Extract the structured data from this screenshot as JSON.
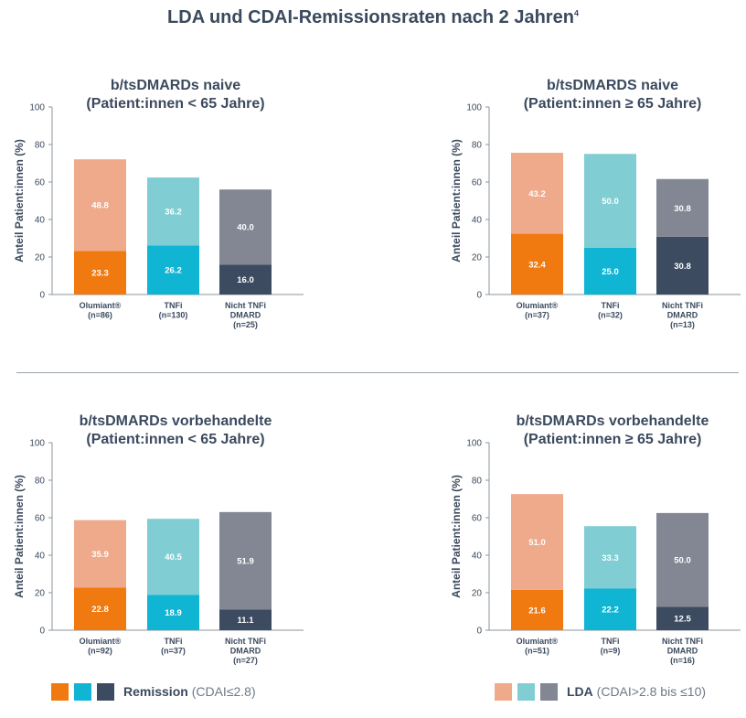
{
  "title": "LDA und CDAI-Remissionsraten nach 2 Jahren",
  "title_ref": "4",
  "colors": {
    "remission": [
      "#f07a10",
      "#10b5d4",
      "#3c4b5f"
    ],
    "lda": [
      "#eeaa8a",
      "#80cdd3",
      "#828793"
    ]
  },
  "legend": {
    "remission_label": "Remission",
    "remission_desc": "(CDAI≤2.8)",
    "lda_label": "LDA",
    "lda_desc": "(CDAI>2.8 bis ≤10)"
  },
  "chart_data": [
    {
      "type": "bar",
      "stacked": true,
      "title_line1": "b/tsDMARDs naive",
      "title_line2": "(Patient:innen < 65 Jahre)",
      "ylabel": "Anteil Patient:innen (%)",
      "ylim": [
        0,
        100
      ],
      "yticks": [
        0,
        20,
        40,
        60,
        80,
        100
      ],
      "categories": [
        [
          "Olumiant®",
          "(n=86)"
        ],
        [
          "TNFi",
          "(n=130)"
        ],
        [
          "Nicht TNFi",
          "DMARD",
          "(n=25)"
        ]
      ],
      "series": [
        {
          "name": "Remission",
          "values": [
            23.3,
            26.2,
            16.0
          ],
          "labels": [
            "23.3",
            "26.2",
            "16.0"
          ]
        },
        {
          "name": "LDA",
          "values": [
            48.8,
            36.2,
            40.0
          ],
          "labels": [
            "48.8",
            "36.2",
            "40.0"
          ]
        }
      ]
    },
    {
      "type": "bar",
      "stacked": true,
      "title_line1": "b/tsDMARDS naive",
      "title_line2": "(Patient:innen ≥ 65 Jahre)",
      "ylabel": "Anteil Patient:innen (%)",
      "ylim": [
        0,
        100
      ],
      "yticks": [
        0,
        20,
        40,
        60,
        80,
        100
      ],
      "categories": [
        [
          "Olumiant®",
          "(n=37)"
        ],
        [
          "TNFi",
          "(n=32)"
        ],
        [
          "Nicht TNFi",
          "DMARD",
          "(n=13)"
        ]
      ],
      "series": [
        {
          "name": "Remission",
          "values": [
            32.4,
            25.0,
            30.8
          ],
          "labels": [
            "32.4",
            "25.0",
            "30.8"
          ]
        },
        {
          "name": "LDA",
          "values": [
            43.2,
            50.0,
            30.8
          ],
          "labels": [
            "43.2",
            "50.0",
            "30.8"
          ]
        }
      ]
    },
    {
      "type": "bar",
      "stacked": true,
      "title_line1": "b/tsDMARDs vorbehandelte",
      "title_line2": "(Patient:innen < 65 Jahre)",
      "ylabel": "Anteil Patient:innen (%)",
      "ylim": [
        0,
        100
      ],
      "yticks": [
        0,
        20,
        40,
        60,
        80,
        100
      ],
      "categories": [
        [
          "Olumiant®",
          "(n=92)"
        ],
        [
          "TNFi",
          "(n=37)"
        ],
        [
          "Nicht TNFi",
          "DMARD",
          "(n=27)"
        ]
      ],
      "series": [
        {
          "name": "Remission",
          "values": [
            22.8,
            18.9,
            11.1
          ],
          "labels": [
            "22.8",
            "18.9",
            "11.1"
          ]
        },
        {
          "name": "LDA",
          "values": [
            35.9,
            40.5,
            51.9
          ],
          "labels": [
            "35.9",
            "40.5",
            "51.9"
          ]
        }
      ]
    },
    {
      "type": "bar",
      "stacked": true,
      "title_line1": "b/tsDMARDs vorbehandelte",
      "title_line2": "(Patient:innen ≥ 65 Jahre)",
      "ylabel": "Anteil Patient:innen (%)",
      "ylim": [
        0,
        100
      ],
      "yticks": [
        0,
        20,
        40,
        60,
        80,
        100
      ],
      "categories": [
        [
          "Olumiant®",
          "(n=51)"
        ],
        [
          "TNFi",
          "(n=9)"
        ],
        [
          "Nicht TNFi",
          "DMARD",
          "(n=16)"
        ]
      ],
      "series": [
        {
          "name": "Remission",
          "values": [
            21.6,
            22.2,
            12.5
          ],
          "labels": [
            "21.6",
            "22.2",
            "12.5"
          ]
        },
        {
          "name": "LDA",
          "values": [
            51.0,
            33.3,
            50.0
          ],
          "labels": [
            "51.0",
            "33.3",
            "50.0"
          ]
        }
      ]
    }
  ]
}
